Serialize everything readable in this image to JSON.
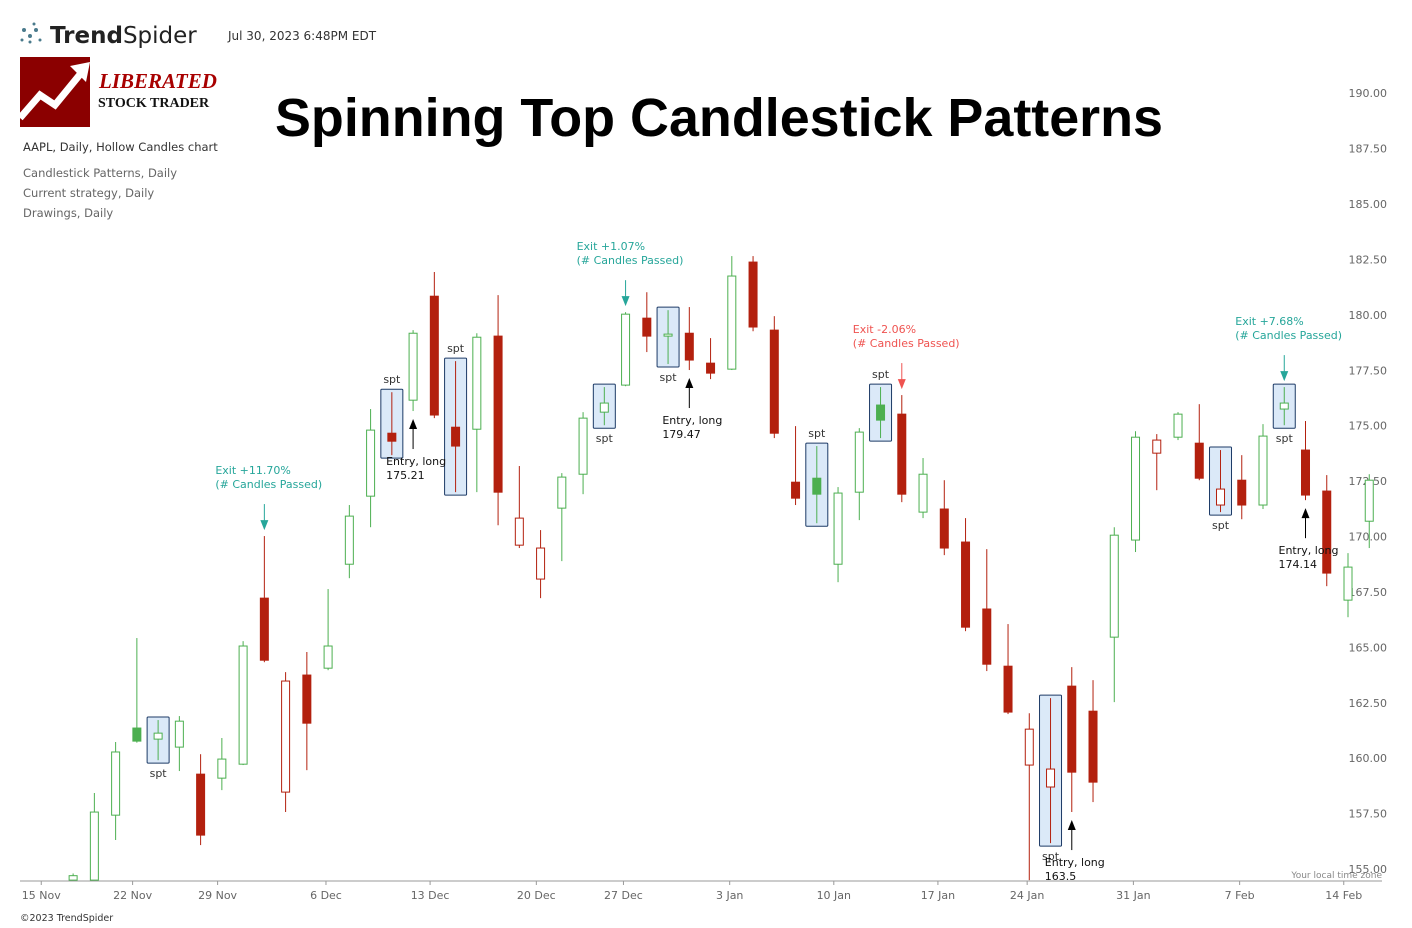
{
  "header": {
    "brand": [
      "Trend",
      "Spider"
    ],
    "timestamp": "Jul 30, 2023 6:48PM EDT",
    "logo": [
      "LIBERATED",
      "STOCK TRADER"
    ],
    "info": [
      "AAPL, Daily, Hollow Candles chart",
      "Candlestick Patterns, Daily",
      "Current strategy, Daily",
      "Drawings, Daily"
    ],
    "footer": "©2023 TrendSpider",
    "timezone": "Your local time zone"
  },
  "chart_data": {
    "type": "candlestick",
    "title": "Spinning Top Candlestick Patterns",
    "up_color": "#4caf50",
    "down_color": "#b3200e",
    "pattern_color": "#dbe9f8",
    "x": [
      0,
      1,
      2,
      3,
      4,
      5,
      6,
      7,
      8,
      9,
      10,
      11,
      12,
      13,
      14,
      15,
      16,
      17,
      18,
      19,
      20,
      21,
      22,
      23,
      24,
      25,
      26,
      27,
      28,
      29,
      30,
      31,
      32,
      33,
      34,
      35,
      36,
      37,
      38,
      39,
      40,
      41,
      42,
      43,
      44,
      45,
      46,
      47,
      48,
      49,
      50,
      51,
      52,
      53,
      54,
      55,
      56,
      57,
      58,
      59,
      60,
      61
    ],
    "open": [
      154.5,
      154.5,
      157.43,
      161.36,
      160.86,
      160.5,
      159.28,
      159.1,
      159.73,
      167.22,
      158.47,
      163.75,
      164.06,
      168.75,
      171.82,
      174.66,
      176.15,
      180.84,
      174.93,
      174.84,
      179.04,
      169.61,
      168.08,
      171.28,
      172.81,
      175.61,
      176.83,
      179.85,
      179.04,
      179.17,
      177.82,
      177.55,
      182.38,
      179.31,
      172.45,
      172.63,
      168.75,
      172.0,
      175.93,
      175.52,
      171.1,
      171.24,
      169.75,
      166.73,
      164.15,
      159.69,
      158.7,
      163.25,
      162.12,
      165.46,
      169.84,
      173.76,
      174.48,
      174.21,
      171.42,
      172.54,
      171.42,
      175.75,
      173.9,
      172.05,
      167.13,
      170.69
    ],
    "high": [
      154.8,
      158.43,
      160.73,
      165.42,
      161.72,
      161.9,
      160.18,
      160.91,
      165.28,
      170.02,
      163.88,
      164.79,
      167.63,
      171.42,
      175.75,
      176.51,
      179.31,
      181.93,
      177.91,
      179.17,
      180.89,
      173.18,
      170.29,
      172.86,
      175.61,
      176.74,
      180.12,
      181.02,
      180.21,
      180.35,
      178.95,
      182.65,
      182.65,
      179.94,
      174.98,
      174.08,
      172.23,
      174.89,
      176.74,
      176.38,
      173.54,
      172.54,
      170.83,
      169.43,
      166.05,
      162.03,
      162.71,
      164.11,
      163.52,
      170.42,
      174.75,
      174.62,
      175.61,
      175.97,
      173.9,
      173.67,
      175.07,
      176.74,
      175.21,
      172.77,
      169.25,
      172.81
    ],
    "low": [
      154.5,
      154.5,
      156.31,
      160.7,
      159.91,
      159.42,
      156.08,
      158.56,
      159.69,
      164.33,
      157.57,
      159.46,
      163.97,
      168.12,
      170.42,
      173.67,
      175.66,
      175.34,
      172.0,
      172.0,
      170.51,
      169.48,
      167.22,
      168.89,
      171.91,
      175.02,
      176.78,
      178.32,
      177.78,
      177.51,
      177.1,
      177.51,
      179.26,
      174.44,
      171.42,
      170.6,
      167.94,
      170.74,
      174.44,
      171.55,
      170.83,
      169.16,
      165.73,
      163.93,
      161.99,
      154.5,
      156.17,
      157.57,
      158.02,
      162.53,
      169.3,
      172.09,
      174.35,
      172.54,
      171.1,
      170.78,
      171.24,
      175.02,
      171.64,
      167.76,
      166.36,
      169.48
    ],
    "close": [
      154.7,
      157.57,
      160.28,
      160.77,
      161.13,
      161.67,
      156.53,
      159.96,
      165.06,
      164.42,
      163.48,
      161.58,
      165.06,
      170.92,
      174.8,
      174.3,
      179.17,
      175.48,
      174.08,
      178.99,
      172.0,
      170.83,
      169.48,
      172.68,
      175.34,
      176.02,
      180.03,
      179.04,
      179.13,
      177.96,
      177.37,
      181.75,
      179.45,
      174.66,
      171.73,
      171.91,
      171.96,
      174.71,
      175.25,
      171.91,
      172.81,
      169.48,
      165.91,
      164.24,
      162.08,
      161.31,
      159.51,
      159.37,
      158.92,
      170.06,
      174.48,
      174.35,
      175.52,
      172.63,
      172.14,
      171.42,
      174.53,
      176.02,
      171.87,
      168.35,
      168.62,
      172.54
    ],
    "xlim": [
      -2.5,
      61.6
    ],
    "xticks": [
      {
        "value": -1.5,
        "label": "15 Nov"
      },
      {
        "value": 2.8,
        "label": "22 Nov"
      },
      {
        "value": 6.8,
        "label": "29 Nov"
      },
      {
        "value": 11.9,
        "label": "6 Dec"
      },
      {
        "value": 16.8,
        "label": "13 Dec"
      },
      {
        "value": 21.8,
        "label": "20 Dec"
      },
      {
        "value": 25.9,
        "label": "27 Dec"
      },
      {
        "value": 30.9,
        "label": "3 Jan"
      },
      {
        "value": 35.8,
        "label": "10 Jan"
      },
      {
        "value": 40.7,
        "label": "17 Jan"
      },
      {
        "value": 44.9,
        "label": "24 Jan"
      },
      {
        "value": 49.9,
        "label": "31 Jan"
      },
      {
        "value": 54.9,
        "label": "7 Feb"
      },
      {
        "value": 59.8,
        "label": "14 Feb"
      }
    ],
    "ylim": [
      154.46,
      193.3
    ],
    "yticks": [
      {
        "value": 155,
        "label": "155.00"
      },
      {
        "value": 157.5,
        "label": "157.50"
      },
      {
        "value": 160,
        "label": "160.00"
      },
      {
        "value": 162.5,
        "label": "162.50"
      },
      {
        "value": 165,
        "label": "165.00"
      },
      {
        "value": 167.5,
        "label": "167.50"
      },
      {
        "value": 170,
        "label": "170.00"
      },
      {
        "value": 172.5,
        "label": "172.50"
      },
      {
        "value": 175,
        "label": "175.00"
      },
      {
        "value": 177.5,
        "label": "177.50"
      },
      {
        "value": 180,
        "label": "180.00"
      },
      {
        "value": 182.5,
        "label": "182.50"
      },
      {
        "value": 185,
        "label": "185.00"
      },
      {
        "value": 187.5,
        "label": "187.50"
      },
      {
        "value": 190,
        "label": "190.00"
      }
    ],
    "grid": false,
    "patterns": [
      {
        "index": 4,
        "label": "spt",
        "position": "below"
      },
      {
        "index": 15,
        "label": "spt",
        "position": "above"
      },
      {
        "index": 18,
        "label": "spt",
        "position": "above"
      },
      {
        "index": 25,
        "label": "spt",
        "position": "below"
      },
      {
        "index": 28,
        "label": "spt",
        "position": "below"
      },
      {
        "index": 35,
        "label": "spt",
        "position": "above"
      },
      {
        "index": 38,
        "label": "spt",
        "position": "above"
      },
      {
        "index": 46,
        "label": "spt",
        "position": "below"
      },
      {
        "index": 54,
        "label": "spt",
        "position": "below"
      },
      {
        "index": 57,
        "label": "spt",
        "position": "below"
      }
    ],
    "exits": [
      {
        "index": 9,
        "text": "Exit +11.70%",
        "note": "(# Candles Passed)",
        "color": "#26a69a"
      },
      {
        "index": 26,
        "text": "Exit +1.07%",
        "note": "(# Candles Passed)",
        "color": "#26a69a"
      },
      {
        "index": 39,
        "text": "Exit -2.06%",
        "note": "(# Candles Passed)",
        "color": "#ef5350"
      },
      {
        "index": 57,
        "text": "Exit +7.68%",
        "note": "(# Candles Passed)",
        "color": "#26a69a"
      }
    ],
    "entries": [
      {
        "index": 16,
        "text": "Entry, long",
        "price": 175.21
      },
      {
        "index": 29,
        "text": "Entry, long",
        "price": 179.47
      },
      {
        "index": 47,
        "text": "Entry, long",
        "price": 163.5
      },
      {
        "index": 58,
        "text": "Entry, long",
        "price": 174.14
      }
    ]
  }
}
